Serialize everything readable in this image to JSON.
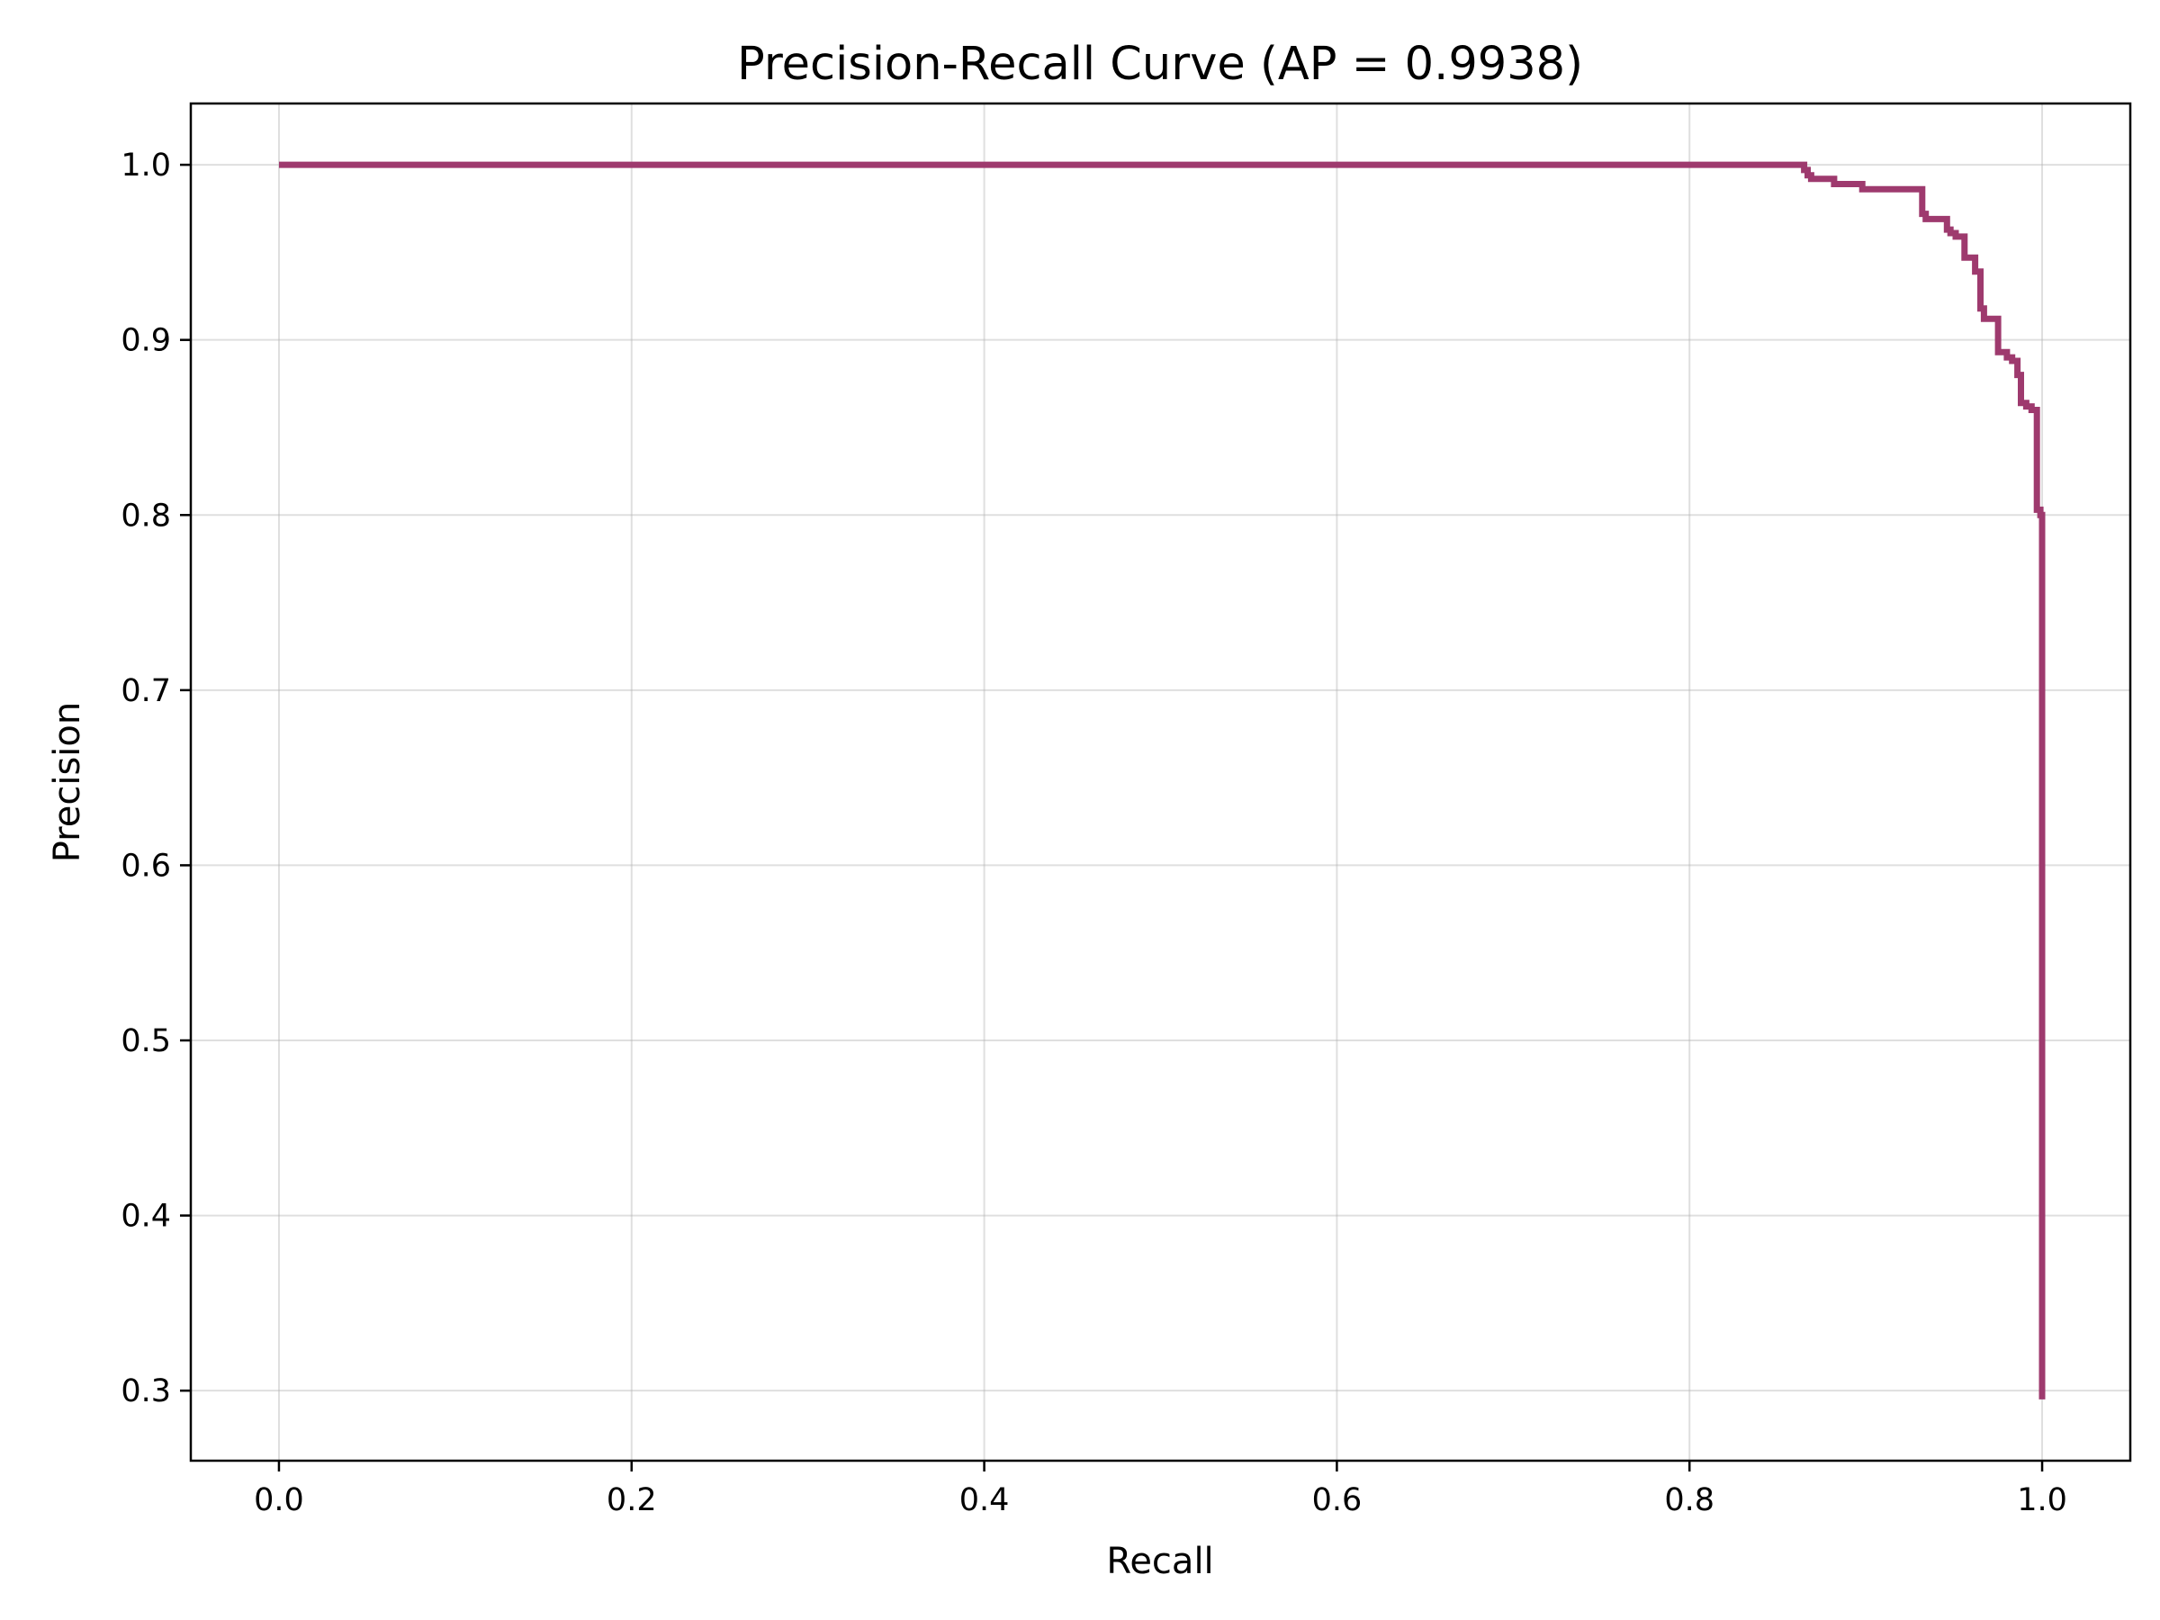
{
  "chart_data": {
    "type": "line",
    "title": "Precision-Recall Curve (AP = 0.9938)",
    "xlabel": "Recall",
    "ylabel": "Precision",
    "xlim": [
      -0.05,
      1.05
    ],
    "ylim": [
      0.26,
      1.035
    ],
    "xticks": [
      0.0,
      0.2,
      0.4,
      0.6,
      0.8,
      1.0
    ],
    "xtick_labels": [
      "0.0",
      "0.2",
      "0.4",
      "0.6",
      "0.8",
      "1.0"
    ],
    "yticks": [
      0.3,
      0.4,
      0.5,
      0.6,
      0.7,
      0.8,
      0.9,
      1.0
    ],
    "ytick_labels": [
      "0.3",
      "0.4",
      "0.5",
      "0.6",
      "0.7",
      "0.8",
      "0.9",
      "1.0"
    ],
    "grid": true,
    "line_color": "#9e3a6e",
    "series": [
      {
        "name": "",
        "step": "post",
        "x": [
          0.0,
          0.865,
          0.867,
          0.869,
          0.882,
          0.884,
          0.898,
          0.9,
          0.932,
          0.934,
          0.937,
          0.946,
          0.948,
          0.951,
          0.956,
          0.958,
          0.962,
          0.965,
          0.967,
          0.972,
          0.975,
          0.98,
          0.983,
          0.986,
          0.988,
          0.991,
          0.994,
          0.997,
          0.999,
          1.0
        ],
        "y": [
          1.0,
          0.997,
          0.994,
          0.992,
          0.989,
          0.989,
          0.986,
          0.986,
          0.972,
          0.969,
          0.969,
          0.963,
          0.961,
          0.959,
          0.947,
          0.947,
          0.939,
          0.918,
          0.912,
          0.912,
          0.893,
          0.89,
          0.888,
          0.88,
          0.864,
          0.862,
          0.86,
          0.803,
          0.8,
          0.295
        ]
      }
    ]
  }
}
